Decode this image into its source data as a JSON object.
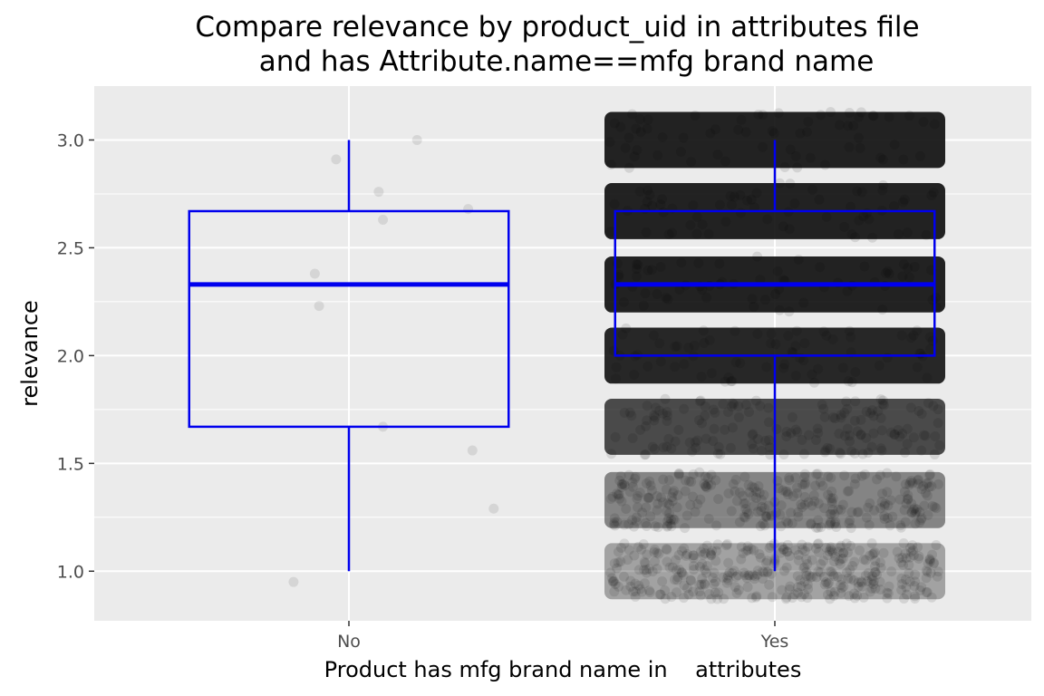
{
  "chart_data": {
    "type": "boxplot",
    "title_lines": [
      "Compare relevance by product_uid in attributes file",
      "and has Attribute.name==mfg brand name"
    ],
    "xlabel": "Product has mfg brand name in    attributes",
    "ylabel": "relevance",
    "categories": [
      "No",
      "Yes"
    ],
    "ylim": [
      0.77,
      3.25
    ],
    "yticks": [
      1.0,
      1.5,
      2.0,
      2.5,
      3.0
    ],
    "ytick_labels": [
      "1.0",
      "1.5",
      "2.0",
      "2.5",
      "3.0"
    ],
    "grid": true,
    "box_color": "#0000ee",
    "point_color": "#000000",
    "panel_background": "#ebebeb",
    "boxes": [
      {
        "category": "No",
        "whisker_low": 1.0,
        "q1": 1.67,
        "median": 2.33,
        "q3": 2.67,
        "whisker_high": 3.0
      },
      {
        "category": "Yes",
        "whisker_low": 1.0,
        "q1": 2.0,
        "median": 2.33,
        "q3": 2.67,
        "whisker_high": 3.0
      }
    ],
    "jitter_points_no": [
      {
        "x": -0.13,
        "y": 0.95
      },
      {
        "x": 0.08,
        "y": 1.67
      },
      {
        "x": 0.29,
        "y": 1.56
      },
      {
        "x": 0.34,
        "y": 1.29
      },
      {
        "x": -0.07,
        "y": 2.23
      },
      {
        "x": -0.08,
        "y": 2.38
      },
      {
        "x": 0.08,
        "y": 2.63
      },
      {
        "x": 0.07,
        "y": 2.76
      },
      {
        "x": 0.28,
        "y": 2.68
      },
      {
        "x": -0.03,
        "y": 2.91
      },
      {
        "x": 0.16,
        "y": 3.0
      }
    ],
    "jitter_bands_yes": [
      {
        "y": 1.0,
        "density": 0.35
      },
      {
        "y": 1.33,
        "density": 0.5
      },
      {
        "y": 1.67,
        "density": 0.78
      },
      {
        "y": 2.0,
        "density": 0.95
      },
      {
        "y": 2.33,
        "density": 0.97
      },
      {
        "y": 2.67,
        "density": 0.97
      },
      {
        "y": 3.0,
        "density": 0.97
      }
    ]
  }
}
